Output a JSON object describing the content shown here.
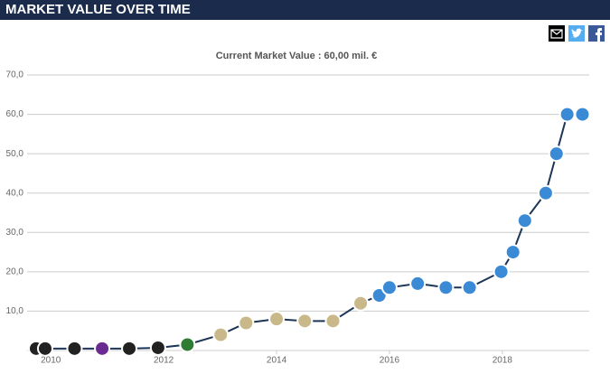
{
  "chart_data": {
    "type": "line",
    "title": "MARKET VALUE OVER TIME",
    "subtitle": "Current Market Value : 60,00 mil. €",
    "x": [
      2009.74,
      2009.9,
      2010.42,
      2010.91,
      2011.39,
      2011.9,
      2012.42,
      2013.01,
      2013.46,
      2014.0,
      2014.5,
      2015.0,
      2015.49,
      2015.82,
      2016.0,
      2016.5,
      2017.0,
      2017.42,
      2017.98,
      2018.19,
      2018.4,
      2018.77,
      2018.96,
      2019.15,
      2019.42
    ],
    "series": [
      {
        "color": "#1d3557",
        "values": [
          0.5,
          0.5,
          0.5,
          0.5,
          0.5,
          0.7,
          1.5,
          4,
          7,
          8,
          7.5,
          7.5,
          12,
          14,
          16,
          17,
          16,
          16,
          20,
          25,
          33,
          40,
          50,
          60,
          60
        ],
        "point_colors": [
          "#222",
          "#222",
          "#222",
          "#6b2c91",
          "#222",
          "#222",
          "#2e7d32",
          "#c9b98a",
          "#c9b98a",
          "#c9b98a",
          "#c9b98a",
          "#c9b98a",
          "#c9b98a",
          "#3a8ad6",
          "#3a8ad6",
          "#3a8ad6",
          "#3a8ad6",
          "#3a8ad6",
          "#3a8ad6",
          "#3a8ad6",
          "#3a8ad6",
          "#3a8ad6",
          "#3a8ad6",
          "#3a8ad6",
          "#3a8ad6"
        ]
      }
    ],
    "xlim": [
      2009.58,
      2019.54
    ],
    "xticks": [
      2010,
      2012,
      2014,
      2016,
      2018
    ],
    "ylim": [
      0,
      70
    ],
    "yticks": [
      {
        "value": 10,
        "label": "10,0"
      },
      {
        "value": 20,
        "label": "20,0"
      },
      {
        "value": 30,
        "label": "30,0"
      },
      {
        "value": 40,
        "label": "40,0"
      },
      {
        "value": 50,
        "label": "50,0"
      },
      {
        "value": 60,
        "label": "60,0"
      },
      {
        "value": 70,
        "label": "70,0"
      }
    ],
    "grid": true
  }
}
